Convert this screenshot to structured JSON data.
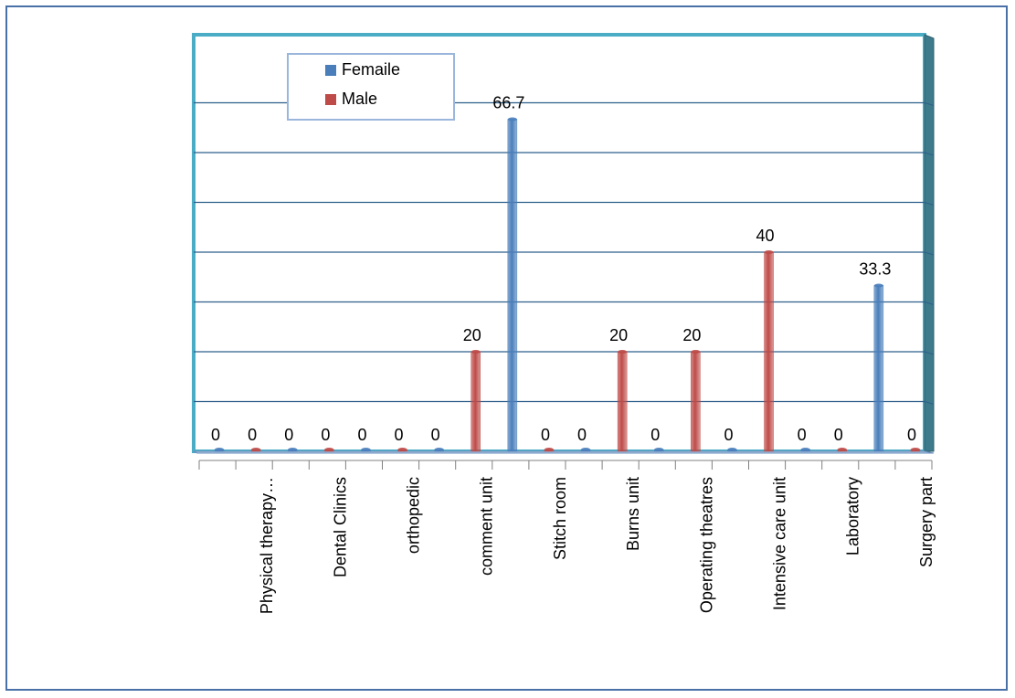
{
  "chart_data": {
    "type": "bar",
    "categories": [
      "Physical therapy…",
      "Dental Clinics",
      "orthopedic",
      "comment unit",
      "Stitch room",
      "Burns unit",
      "Operating theatres",
      "Intensive care unit",
      "Laboratory",
      "Surgery part"
    ],
    "series": [
      {
        "name": "Femaile",
        "values": [
          0,
          0,
          0,
          0,
          66.7,
          0,
          0,
          0,
          0,
          33.3
        ]
      },
      {
        "name": "Male",
        "values": [
          0,
          0,
          0,
          20,
          0,
          20,
          20,
          40,
          0,
          0
        ]
      }
    ],
    "ylim": [
      0,
      80
    ],
    "grid": true,
    "legend_position": "top-left",
    "colors": {
      "Femaile": "#4a7ebb",
      "Male": "#be4b48",
      "wall": "#4bacc6",
      "gridline": "#2e5f8a"
    }
  }
}
